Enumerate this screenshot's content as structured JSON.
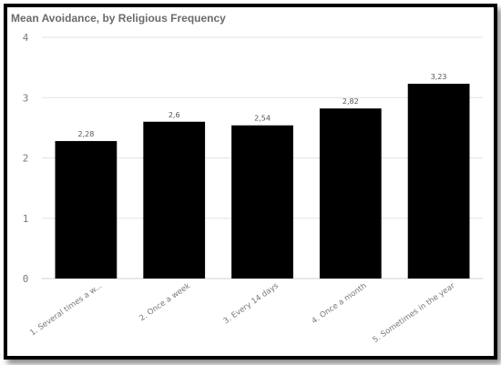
{
  "chart_data": {
    "type": "bar",
    "title": "Mean Avoidance, by Religious Frequency",
    "xlabel": "",
    "ylabel": "",
    "categories": [
      "1. Several times a w...",
      "2. Once a week",
      "3. Every 14 days",
      "4. Once a month",
      "5. Sometimes in the year"
    ],
    "values": [
      2.28,
      2.6,
      2.54,
      2.82,
      3.23
    ],
    "data_labels": [
      "2,28",
      "2,6",
      "2,54",
      "2,82",
      "3,23"
    ],
    "ylim": [
      0,
      4
    ],
    "yticks": [
      0,
      1,
      2,
      3,
      4
    ],
    "ytick_labels": [
      "0",
      "1",
      "2",
      "3",
      "4"
    ],
    "grid": "horizontal",
    "bar_color": "#000000",
    "grid_color": "#e3e3e3",
    "legend": "none"
  }
}
